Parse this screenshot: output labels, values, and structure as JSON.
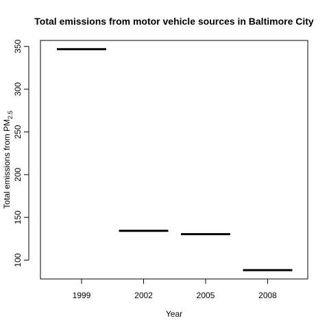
{
  "chart_data": {
    "type": "line",
    "title": "Total emissions from motor vehicle sources in Baltimore City",
    "xlabel": "Year",
    "ylabel": "Total emissions from PM",
    "ylabel_subscript": "2.5",
    "categories": [
      "1999",
      "2002",
      "2005",
      "2008"
    ],
    "values": [
      346.8,
      134.3,
      130.4,
      88.3
    ],
    "yticks": [
      100,
      150,
      200,
      250,
      300,
      350
    ],
    "ylim": [
      78,
      357
    ],
    "grid": false,
    "legend": "none",
    "colors": {
      "line": "#000000",
      "axis": "#000000",
      "background": "#ffffff"
    }
  }
}
